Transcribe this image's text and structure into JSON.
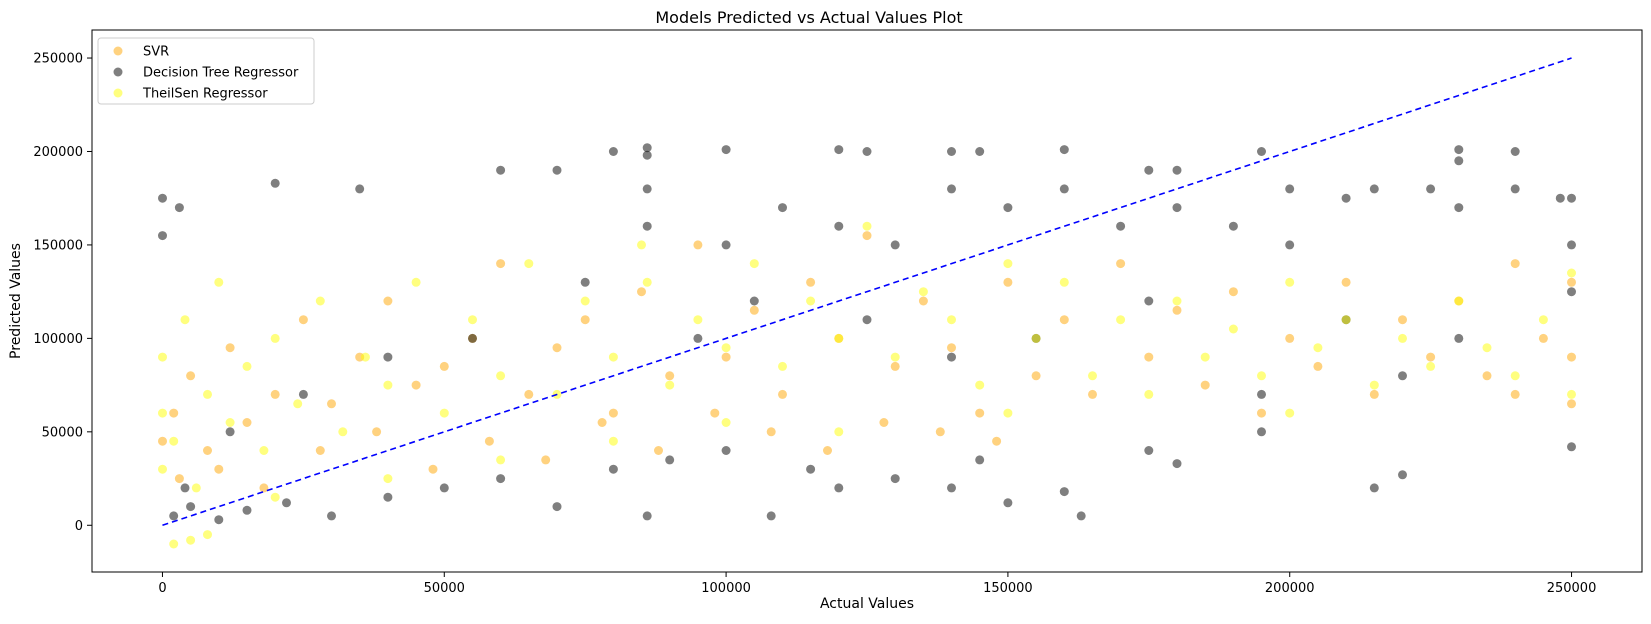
{
  "chart_data": {
    "type": "scatter",
    "title": "Models Predicted vs Actual Values Plot",
    "xlabel": "Actual Values",
    "ylabel": "Predicted Values",
    "xlim": [
      -12500,
      262500
    ],
    "ylim": [
      -25000,
      265000
    ],
    "x_ticks": [
      0,
      50000,
      100000,
      150000,
      200000,
      250000
    ],
    "y_ticks": [
      0,
      50000,
      100000,
      150000,
      200000,
      250000
    ],
    "grid": false,
    "legend_position": "top-left",
    "reference_line": {
      "name": "",
      "color": "#0000ff",
      "style": "dashed",
      "x": [
        0,
        250000
      ],
      "y": [
        0,
        250000
      ]
    },
    "series": [
      {
        "name": "SVR",
        "color": "#ffa500",
        "alpha": 0.5,
        "points": [
          [
            0,
            45000
          ],
          [
            2000,
            60000
          ],
          [
            5000,
            80000
          ],
          [
            8000,
            40000
          ],
          [
            12000,
            95000
          ],
          [
            15000,
            55000
          ],
          [
            20000,
            70000
          ],
          [
            25000,
            110000
          ],
          [
            30000,
            65000
          ],
          [
            35000,
            90000
          ],
          [
            40000,
            120000
          ],
          [
            45000,
            75000
          ],
          [
            50000,
            85000
          ],
          [
            55000,
            100000
          ],
          [
            60000,
            140000
          ],
          [
            65000,
            70000
          ],
          [
            70000,
            95000
          ],
          [
            75000,
            110000
          ],
          [
            80000,
            60000
          ],
          [
            85000,
            125000
          ],
          [
            90000,
            80000
          ],
          [
            95000,
            150000
          ],
          [
            100000,
            90000
          ],
          [
            105000,
            115000
          ],
          [
            110000,
            70000
          ],
          [
            115000,
            130000
          ],
          [
            120000,
            100000
          ],
          [
            125000,
            155000
          ],
          [
            130000,
            85000
          ],
          [
            135000,
            120000
          ],
          [
            140000,
            95000
          ],
          [
            145000,
            60000
          ],
          [
            150000,
            130000
          ],
          [
            155000,
            80000
          ],
          [
            160000,
            110000
          ],
          [
            165000,
            70000
          ],
          [
            170000,
            140000
          ],
          [
            175000,
            90000
          ],
          [
            180000,
            115000
          ],
          [
            185000,
            75000
          ],
          [
            190000,
            125000
          ],
          [
            195000,
            60000
          ],
          [
            200000,
            100000
          ],
          [
            205000,
            85000
          ],
          [
            210000,
            130000
          ],
          [
            215000,
            70000
          ],
          [
            220000,
            110000
          ],
          [
            225000,
            90000
          ],
          [
            230000,
            120000
          ],
          [
            235000,
            80000
          ],
          [
            240000,
            70000
          ],
          [
            245000,
            100000
          ],
          [
            250000,
            65000
          ],
          [
            250000,
            90000
          ],
          [
            250000,
            130000
          ],
          [
            240000,
            140000
          ],
          [
            3000,
            25000
          ],
          [
            10000,
            30000
          ],
          [
            18000,
            20000
          ],
          [
            28000,
            40000
          ],
          [
            38000,
            50000
          ],
          [
            48000,
            30000
          ],
          [
            58000,
            45000
          ],
          [
            68000,
            35000
          ],
          [
            78000,
            55000
          ],
          [
            88000,
            40000
          ],
          [
            98000,
            60000
          ],
          [
            108000,
            50000
          ],
          [
            118000,
            40000
          ],
          [
            128000,
            55000
          ],
          [
            138000,
            50000
          ],
          [
            148000,
            45000
          ]
        ]
      },
      {
        "name": "Decision Tree Regressor",
        "color": "#000000",
        "alpha": 0.5,
        "points": [
          [
            0,
            175000
          ],
          [
            0,
            155000
          ],
          [
            3000,
            170000
          ],
          [
            20000,
            183000
          ],
          [
            35000,
            180000
          ],
          [
            60000,
            190000
          ],
          [
            70000,
            190000
          ],
          [
            80000,
            200000
          ],
          [
            86000,
            202000
          ],
          [
            86000,
            198000
          ],
          [
            100000,
            201000
          ],
          [
            120000,
            201000
          ],
          [
            125000,
            200000
          ],
          [
            140000,
            200000
          ],
          [
            145000,
            200000
          ],
          [
            160000,
            201000
          ],
          [
            175000,
            190000
          ],
          [
            180000,
            190000
          ],
          [
            195000,
            200000
          ],
          [
            230000,
            201000
          ],
          [
            230000,
            195000
          ],
          [
            240000,
            200000
          ],
          [
            250000,
            175000
          ],
          [
            248000,
            175000
          ],
          [
            2000,
            5000
          ],
          [
            5000,
            10000
          ],
          [
            10000,
            3000
          ],
          [
            15000,
            8000
          ],
          [
            22000,
            12000
          ],
          [
            30000,
            5000
          ],
          [
            40000,
            15000
          ],
          [
            50000,
            20000
          ],
          [
            60000,
            25000
          ],
          [
            70000,
            10000
          ],
          [
            80000,
            30000
          ],
          [
            86000,
            5000
          ],
          [
            90000,
            35000
          ],
          [
            100000,
            40000
          ],
          [
            108000,
            5000
          ],
          [
            115000,
            30000
          ],
          [
            120000,
            20000
          ],
          [
            130000,
            25000
          ],
          [
            140000,
            20000
          ],
          [
            145000,
            35000
          ],
          [
            150000,
            12000
          ],
          [
            160000,
            18000
          ],
          [
            163000,
            5000
          ],
          [
            175000,
            40000
          ],
          [
            180000,
            33000
          ],
          [
            195000,
            50000
          ],
          [
            215000,
            20000
          ],
          [
            220000,
            27000
          ],
          [
            250000,
            42000
          ],
          [
            86000,
            180000
          ],
          [
            86000,
            160000
          ],
          [
            100000,
            150000
          ],
          [
            110000,
            170000
          ],
          [
            120000,
            160000
          ],
          [
            130000,
            150000
          ],
          [
            140000,
            180000
          ],
          [
            150000,
            170000
          ],
          [
            160000,
            180000
          ],
          [
            170000,
            160000
          ],
          [
            180000,
            170000
          ],
          [
            190000,
            160000
          ],
          [
            200000,
            180000
          ],
          [
            200000,
            150000
          ],
          [
            210000,
            175000
          ],
          [
            215000,
            180000
          ],
          [
            225000,
            180000
          ],
          [
            230000,
            170000
          ],
          [
            240000,
            180000
          ],
          [
            250000,
            150000
          ],
          [
            250000,
            125000
          ],
          [
            230000,
            100000
          ],
          [
            220000,
            80000
          ],
          [
            210000,
            110000
          ],
          [
            195000,
            70000
          ],
          [
            175000,
            120000
          ],
          [
            155000,
            100000
          ],
          [
            140000,
            90000
          ],
          [
            125000,
            110000
          ],
          [
            105000,
            120000
          ],
          [
            95000,
            100000
          ],
          [
            75000,
            130000
          ],
          [
            55000,
            100000
          ],
          [
            40000,
            90000
          ],
          [
            25000,
            70000
          ],
          [
            12000,
            50000
          ],
          [
            4000,
            20000
          ]
        ]
      },
      {
        "name": "TheilSen Regressor",
        "color": "#ffff00",
        "alpha": 0.5,
        "points": [
          [
            0,
            30000
          ],
          [
            0,
            60000
          ],
          [
            0,
            90000
          ],
          [
            2000,
            45000
          ],
          [
            4000,
            110000
          ],
          [
            6000,
            20000
          ],
          [
            8000,
            70000
          ],
          [
            10000,
            130000
          ],
          [
            12000,
            55000
          ],
          [
            15000,
            85000
          ],
          [
            18000,
            40000
          ],
          [
            20000,
            100000
          ],
          [
            24000,
            65000
          ],
          [
            28000,
            120000
          ],
          [
            32000,
            50000
          ],
          [
            36000,
            90000
          ],
          [
            40000,
            75000
          ],
          [
            45000,
            130000
          ],
          [
            50000,
            60000
          ],
          [
            55000,
            110000
          ],
          [
            60000,
            80000
          ],
          [
            65000,
            140000
          ],
          [
            70000,
            70000
          ],
          [
            75000,
            120000
          ],
          [
            80000,
            90000
          ],
          [
            85000,
            150000
          ],
          [
            86000,
            130000
          ],
          [
            90000,
            75000
          ],
          [
            95000,
            110000
          ],
          [
            100000,
            95000
          ],
          [
            105000,
            140000
          ],
          [
            110000,
            85000
          ],
          [
            115000,
            120000
          ],
          [
            120000,
            100000
          ],
          [
            125000,
            160000
          ],
          [
            130000,
            90000
          ],
          [
            135000,
            125000
          ],
          [
            140000,
            110000
          ],
          [
            145000,
            75000
          ],
          [
            150000,
            140000
          ],
          [
            150000,
            60000
          ],
          [
            155000,
            100000
          ],
          [
            160000,
            130000
          ],
          [
            165000,
            80000
          ],
          [
            170000,
            110000
          ],
          [
            175000,
            70000
          ],
          [
            180000,
            120000
          ],
          [
            185000,
            90000
          ],
          [
            190000,
            105000
          ],
          [
            195000,
            80000
          ],
          [
            200000,
            130000
          ],
          [
            200000,
            60000
          ],
          [
            205000,
            95000
          ],
          [
            210000,
            110000
          ],
          [
            215000,
            75000
          ],
          [
            220000,
            100000
          ],
          [
            225000,
            85000
          ],
          [
            230000,
            120000
          ],
          [
            235000,
            95000
          ],
          [
            240000,
            80000
          ],
          [
            245000,
            110000
          ],
          [
            250000,
            70000
          ],
          [
            250000,
            135000
          ],
          [
            2000,
            -10000
          ],
          [
            5000,
            -8000
          ],
          [
            8000,
            -5000
          ],
          [
            120000,
            50000
          ],
          [
            100000,
            55000
          ],
          [
            80000,
            45000
          ],
          [
            60000,
            35000
          ],
          [
            40000,
            25000
          ],
          [
            20000,
            15000
          ]
        ]
      }
    ]
  }
}
